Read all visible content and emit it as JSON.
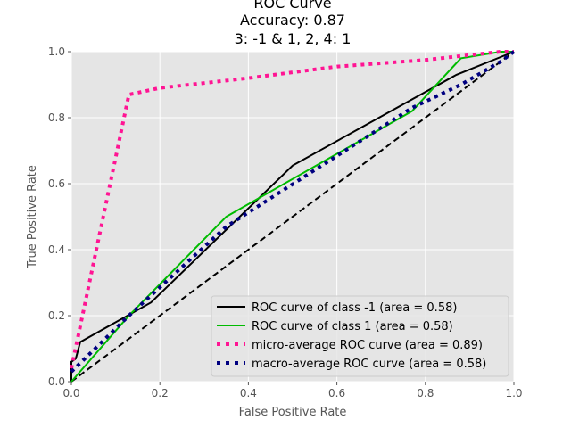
{
  "chart_data": {
    "type": "line",
    "title_lines": [
      "ROC Curve",
      "Accuracy: 0.87",
      "3: -1 & 1, 2, 4: 1"
    ],
    "xlabel": "False Positive Rate",
    "ylabel": "True Positive Rate",
    "xlim": [
      0,
      1
    ],
    "ylim": [
      0,
      1
    ],
    "xticks": [
      "0.0",
      "0.2",
      "0.4",
      "0.6",
      "0.8",
      "1.0"
    ],
    "yticks": [
      "0.0",
      "0.2",
      "0.4",
      "0.6",
      "0.8",
      "1.0"
    ],
    "grid": true,
    "legend_position": "lower right",
    "series": [
      {
        "name": "ROC curve of class -1 (area = 0.58)",
        "color": "#000000",
        "style": "solid",
        "x": [
          0,
          0,
          0.01,
          0.02,
          0.18,
          0.5,
          0.87,
          1.0
        ],
        "y": [
          0,
          0.06,
          0.07,
          0.12,
          0.24,
          0.655,
          0.93,
          1.0
        ]
      },
      {
        "name": "ROC curve of class 1 (area = 0.58)",
        "color": "#00bb00",
        "style": "solid",
        "x": [
          0,
          0.13,
          0.35,
          0.77,
          0.88,
          0.97,
          1.0
        ],
        "y": [
          0,
          0.2,
          0.5,
          0.82,
          0.98,
          1.0,
          1.0
        ]
      },
      {
        "name": "micro-average ROC curve (area = 0.89)",
        "color": "#ff1493",
        "style": "dotted",
        "x": [
          0,
          0.13,
          0.2,
          0.4,
          0.6,
          0.8,
          0.9,
          0.97,
          1.0
        ],
        "y": [
          0.04,
          0.87,
          0.89,
          0.92,
          0.955,
          0.975,
          0.99,
          1.0,
          1.0
        ]
      },
      {
        "name": "macro-average ROC curve (area = 0.58)",
        "color": "#000080",
        "style": "dotted",
        "x": [
          0,
          0.13,
          0.35,
          0.77,
          0.88,
          0.97,
          1.0
        ],
        "y": [
          0.03,
          0.2,
          0.47,
          0.83,
          0.9,
          0.97,
          1.0
        ]
      }
    ],
    "reference_line": {
      "color": "#000000",
      "style": "dashed",
      "x": [
        0,
        1
      ],
      "y": [
        0,
        1
      ]
    }
  }
}
